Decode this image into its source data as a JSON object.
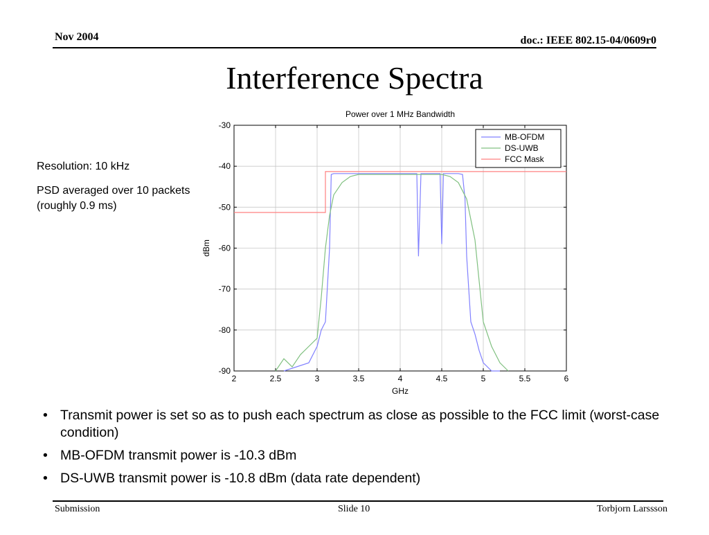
{
  "header": {
    "date": "Nov 2004",
    "doc": "doc.: IEEE 802.15-04/0609r0"
  },
  "title": "Interference Spectra",
  "notes": {
    "resolution": "Resolution: 10 kHz",
    "psd": "PSD averaged over 10 packets (roughly 0.9 ms)"
  },
  "bullets": [
    "Transmit power is set so as to push each spectrum as close as possible to the FCC limit (worst-case condition)",
    "MB-OFDM transmit power is -10.3 dBm",
    "DS-UWB transmit power is -10.8 dBm (data rate dependent)"
  ],
  "footer": {
    "left": "Submission",
    "center": "Slide 10",
    "right": "Torbjorn Larssson"
  },
  "chart_data": {
    "type": "line",
    "title": "Power over 1 MHz Bandwidth",
    "xlabel": "GHz",
    "ylabel": "dBm",
    "xlim": [
      2,
      6
    ],
    "ylim": [
      -90,
      -30
    ],
    "xticks": [
      2,
      2.5,
      3,
      3.5,
      4,
      4.5,
      5,
      5.5,
      6
    ],
    "yticks": [
      -30,
      -40,
      -50,
      -60,
      -70,
      -80,
      -90
    ],
    "grid": true,
    "legend_position": "top-right",
    "series": [
      {
        "name": "MB-OFDM",
        "color": "#8080ff",
        "x": [
          2.6,
          2.9,
          3.0,
          3.05,
          3.1,
          3.15,
          3.17,
          3.2,
          3.25,
          3.3,
          3.5,
          3.7,
          3.9,
          4.1,
          4.2,
          4.22,
          4.25,
          4.3,
          4.4,
          4.48,
          4.5,
          4.52,
          4.6,
          4.7,
          4.75,
          4.78,
          4.8,
          4.85,
          4.9,
          4.95,
          5.0,
          5.1,
          5.2
        ],
        "y": [
          -90,
          -88,
          -84,
          -80,
          -78,
          -60,
          -42,
          -41.8,
          -41.8,
          -41.8,
          -41.8,
          -41.8,
          -41.8,
          -41.8,
          -41.8,
          -62,
          -41.8,
          -41.8,
          -41.8,
          -41.8,
          -59,
          -41.8,
          -41.8,
          -41.8,
          -42,
          -48,
          -62,
          -78,
          -81,
          -85,
          -88,
          -90,
          -90
        ]
      },
      {
        "name": "DS-UWB",
        "color": "#80c080",
        "x": [
          2.5,
          2.6,
          2.7,
          2.8,
          2.9,
          3.0,
          3.05,
          3.1,
          3.15,
          3.2,
          3.3,
          3.4,
          3.5,
          3.6,
          3.7,
          3.8,
          3.9,
          4.0,
          4.1,
          4.2,
          4.3,
          4.4,
          4.5,
          4.6,
          4.7,
          4.8,
          4.9,
          5.0,
          5.1,
          5.2,
          5.3
        ],
        "y": [
          -90,
          -87,
          -89,
          -86,
          -84,
          -82,
          -72,
          -60,
          -52,
          -47,
          -44,
          -42.5,
          -42,
          -42,
          -42,
          -42,
          -42,
          -42,
          -42,
          -42,
          -42,
          -42,
          -42,
          -42.5,
          -44,
          -48,
          -58,
          -78,
          -84,
          -88,
          -90
        ]
      },
      {
        "name": "FCC Mask",
        "color": "#ff8080",
        "x": [
          2,
          3.1,
          3.1,
          6
        ],
        "y": [
          -51.3,
          -51.3,
          -41.3,
          -41.3
        ]
      }
    ]
  }
}
